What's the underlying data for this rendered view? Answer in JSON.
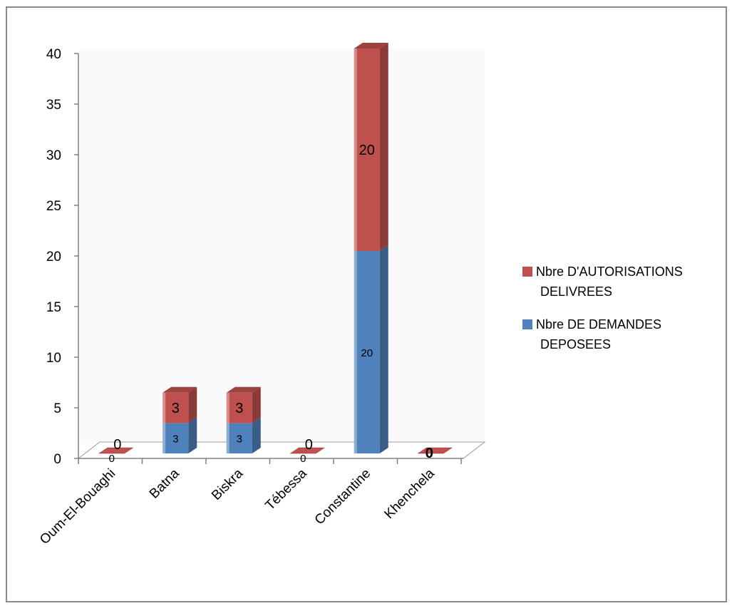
{
  "chart_data": {
    "type": "bar",
    "stacked": true,
    "three_d": true,
    "title": "",
    "xlabel": "",
    "ylabel": "",
    "categories": [
      "Oum-El-Bouaghi",
      "Batna",
      "Biskra",
      "Tébessa",
      "Constantine",
      "Khenchela"
    ],
    "series": [
      {
        "name": "Nbre DE DEMANDES DEPOSEES",
        "values": [
          0,
          3,
          3,
          0,
          20,
          0
        ],
        "color": "#4F81BD",
        "labels": [
          "0",
          "3",
          "3",
          "0",
          "20",
          "0"
        ]
      },
      {
        "name": "Nbre D'AUTORISATIONS DELIVREES",
        "values": [
          0,
          3,
          3,
          0,
          20,
          0
        ],
        "color": "#C0504D",
        "labels": [
          "0",
          "3",
          "3",
          "0",
          "20",
          "0"
        ]
      }
    ],
    "ylim": [
      0,
      40
    ],
    "yticks": [
      "0",
      "5",
      "10",
      "15",
      "20",
      "25",
      "30",
      "35",
      "40"
    ],
    "grid": false,
    "legend_position": "right",
    "legend": [
      {
        "line1": "Nbre D'AUTORISATIONS",
        "line2": "DELIVREES",
        "color": "#C0504D"
      },
      {
        "line1": "Nbre DE DEMANDES",
        "line2": "DEPOSEES",
        "color": "#4F81BD"
      }
    ]
  }
}
